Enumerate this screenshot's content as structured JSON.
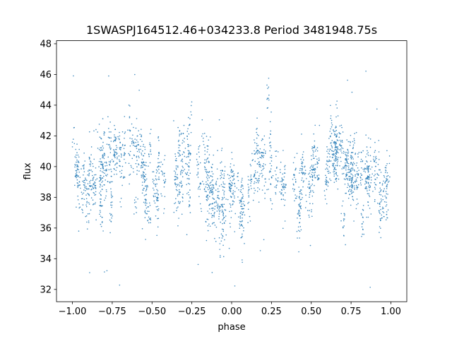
{
  "chart_data": {
    "type": "scatter",
    "title": "1SWASPJ164512.46+034233.8 Period 3481948.75s",
    "xlabel": "phase",
    "ylabel": "flux",
    "xlim": [
      -1.1,
      1.1
    ],
    "ylim": [
      31.2,
      48.2
    ],
    "xticks": [
      -1.0,
      -0.75,
      -0.5,
      -0.25,
      0.0,
      0.25,
      0.5,
      0.75,
      1.0
    ],
    "xtick_labels": [
      "−1.00",
      "−0.75",
      "−0.50",
      "−0.25",
      "0.00",
      "0.25",
      "0.50",
      "0.75",
      "1.00"
    ],
    "yticks": [
      32,
      34,
      36,
      38,
      40,
      42,
      44,
      46,
      48
    ],
    "ytick_labels": [
      "32",
      "34",
      "36",
      "38",
      "40",
      "42",
      "44",
      "46",
      "48"
    ],
    "grid": false,
    "legend": "none",
    "series": [
      {
        "color": "#1f77b4",
        "marker_size": 0.8,
        "phase_range": [
          -1.0,
          1.0
        ],
        "symmetric_about_zero_phase": true,
        "profile_x": [
          0.0,
          0.04,
          0.08,
          0.12,
          0.16,
          0.2,
          0.25,
          0.3,
          0.35,
          0.4,
          0.45,
          0.5,
          0.55,
          0.6,
          0.65,
          0.7,
          0.75,
          0.8,
          0.85,
          0.9,
          0.95,
          1.0
        ],
        "profile_median": [
          39.0,
          37.3,
          37.6,
          38.4,
          39.5,
          40.1,
          40.2,
          39.8,
          39.2,
          38.7,
          38.8,
          39.5,
          40.0,
          40.4,
          40.5,
          40.3,
          40.0,
          39.8,
          39.2,
          38.7,
          39.0,
          39.6
        ],
        "typical_spread": 2.0,
        "flux_min": 32.0,
        "flux_max": 46.8
      }
    ]
  }
}
